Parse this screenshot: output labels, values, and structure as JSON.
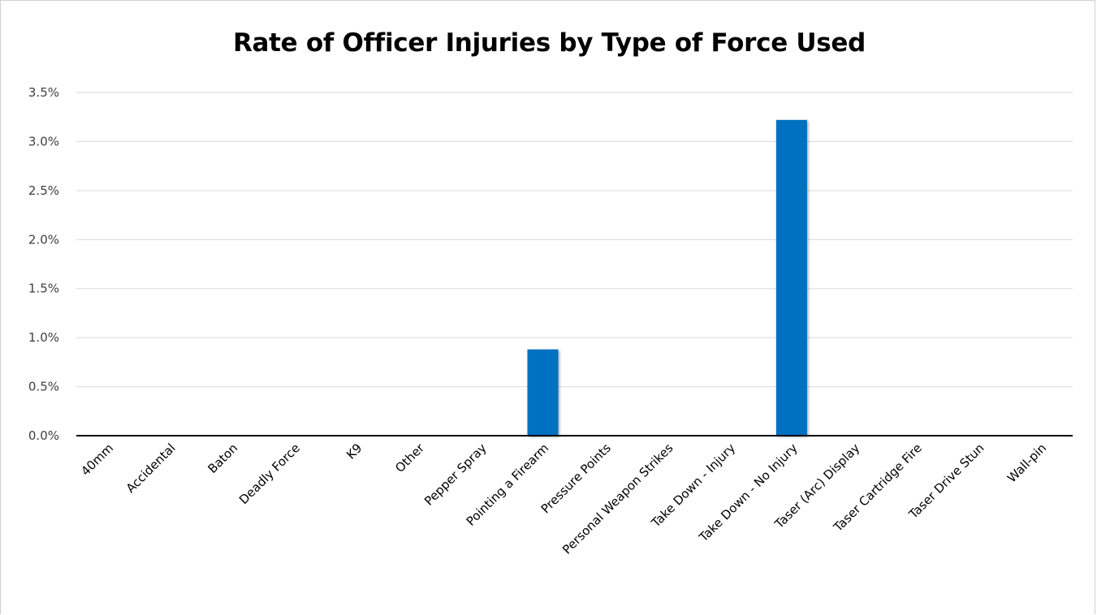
{
  "chart_data": {
    "type": "bar",
    "title": "Rate of Officer Injuries by Type of Force Used",
    "xlabel": "",
    "ylabel": "",
    "categories": [
      "40mm",
      "Accidental",
      "Baton",
      "Deadly Force",
      "K9",
      "Other",
      "Pepper Spray",
      "Pointing a Firearm",
      "Pressure Points",
      "Personal Weapon Strikes",
      "Take Down - Injury",
      "Take Down - No Injury",
      "Taser (Arc) Display",
      "Taser Cartridge Fire",
      "Taser Drive Stun",
      "Wall-pin"
    ],
    "values": [
      0,
      0,
      0,
      0,
      0,
      0,
      0,
      0.0088,
      0,
      0,
      0,
      0.0322,
      0,
      0,
      0,
      0
    ],
    "ylim": [
      0,
      0.035
    ],
    "yticks": [
      0,
      0.005,
      0.01,
      0.015,
      0.02,
      0.025,
      0.03,
      0.035
    ],
    "ytick_labels": [
      "0.0%",
      "0.5%",
      "1.0%",
      "1.5%",
      "2.0%",
      "2.5%",
      "3.0%",
      "3.5%"
    ],
    "bar_color": "#0070c0",
    "grid": true,
    "legend": "none"
  }
}
